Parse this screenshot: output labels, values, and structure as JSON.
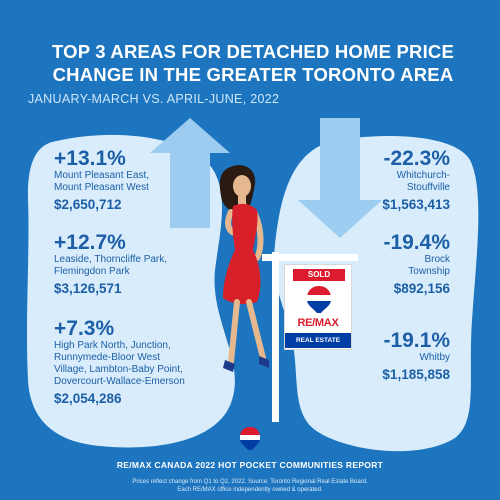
{
  "header": {
    "title_line1": "TOP 3 AREAS FOR DETACHED HOME PRICE",
    "title_line2": "CHANGE IN THE GREATER TORONTO AREA",
    "subtitle": "JANUARY-MARCH VS. APRIL-JUNE, 2022"
  },
  "gains": [
    {
      "pct": "+13.1%",
      "area_line1": "Mount Pleasant East,",
      "area_line2": "Mount Pleasant West",
      "price": "$2,650,712"
    },
    {
      "pct": "+12.7%",
      "area_line1": "Leaside, Thorncliffe Park,",
      "area_line2": "Flemingdon Park",
      "price": "$3,126,571"
    },
    {
      "pct": "+7.3%",
      "area_line1": "High Park North, Junction,",
      "area_line2": "Runnymede-Bloor West",
      "area_line3": "Village, Lambton-Baby Point,",
      "area_line4": "Dovercourt-Wallace-Emerson",
      "price": "$2,054,286"
    }
  ],
  "losses": [
    {
      "pct": "-22.3%",
      "area_line1": "Whitchurch-",
      "area_line2": "Stouffville",
      "price": "$1,563,413"
    },
    {
      "pct": "-19.4%",
      "area_line1": "Brock",
      "area_line2": "Township",
      "price": "$892,156"
    },
    {
      "pct": "-19.1%",
      "area_line1": "Whitby",
      "price": "$1,185,858"
    }
  ],
  "sign": {
    "sold": "SOLD",
    "brand": "RE/MAX",
    "strip": "REAL ESTATE",
    "balloon_text": "RE/MAX"
  },
  "footer": {
    "logo_text": "RE/MAX",
    "title": "RE/MAX CANADA 2022 HOT POCKET COMMUNITIES REPORT",
    "note_line1": "Prices reflect change from Q1 to Q2, 2022. Source: Toronto Regional Real Estate Board.",
    "note_line2": "Each RE/MAX office independently owned & operated."
  },
  "colors": {
    "background": "#1c75be",
    "blob": "#d8ecfb",
    "text_blue": "#1c5fa6",
    "arrow": "#9cccf0",
    "dress": "#d8202a",
    "brand_red": "#dc1c2e",
    "brand_blue": "#003da5"
  }
}
